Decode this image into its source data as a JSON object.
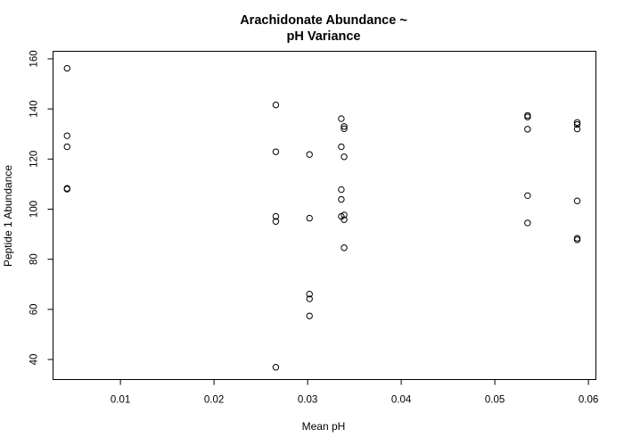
{
  "chart_data": {
    "type": "scatter",
    "title": [
      "Arachidonate Abundance ~",
      "pH Variance"
    ],
    "xlabel": "Mean pH",
    "ylabel": "Peptide 1 Abundance",
    "xlim": [
      0.0028,
      0.0608
    ],
    "ylim": [
      32,
      163
    ],
    "xticks": [
      0.01,
      0.02,
      0.03,
      0.04,
      0.05,
      0.06
    ],
    "xtick_labels": [
      "0.01",
      "0.02",
      "0.03",
      "0.04",
      "0.05",
      "0.06"
    ],
    "yticks": [
      40,
      60,
      80,
      100,
      120,
      140,
      160
    ],
    "ytick_labels": [
      "40",
      "60",
      "80",
      "100",
      "120",
      "140",
      "160"
    ],
    "grid": false,
    "marker": "open-circle",
    "marker_color": "#000000",
    "points": [
      {
        "x": 0.0043,
        "y": 156.2
      },
      {
        "x": 0.0043,
        "y": 129.3
      },
      {
        "x": 0.0043,
        "y": 124.9
      },
      {
        "x": 0.0043,
        "y": 108.3
      },
      {
        "x": 0.0043,
        "y": 108.0
      },
      {
        "x": 0.0266,
        "y": 141.6
      },
      {
        "x": 0.0266,
        "y": 122.9
      },
      {
        "x": 0.0266,
        "y": 97.1
      },
      {
        "x": 0.0266,
        "y": 95.1
      },
      {
        "x": 0.0266,
        "y": 36.9
      },
      {
        "x": 0.0302,
        "y": 121.8
      },
      {
        "x": 0.0302,
        "y": 96.4
      },
      {
        "x": 0.0302,
        "y": 66.1
      },
      {
        "x": 0.0302,
        "y": 64.2
      },
      {
        "x": 0.0302,
        "y": 57.4
      },
      {
        "x": 0.0336,
        "y": 136.1
      },
      {
        "x": 0.0339,
        "y": 133.0
      },
      {
        "x": 0.0339,
        "y": 132.1
      },
      {
        "x": 0.0336,
        "y": 124.9
      },
      {
        "x": 0.0339,
        "y": 120.9
      },
      {
        "x": 0.0336,
        "y": 107.8
      },
      {
        "x": 0.0336,
        "y": 103.9
      },
      {
        "x": 0.0339,
        "y": 97.7
      },
      {
        "x": 0.0336,
        "y": 97.1
      },
      {
        "x": 0.0339,
        "y": 95.8
      },
      {
        "x": 0.0339,
        "y": 84.6
      },
      {
        "x": 0.0535,
        "y": 137.4
      },
      {
        "x": 0.0535,
        "y": 136.8
      },
      {
        "x": 0.0535,
        "y": 131.9
      },
      {
        "x": 0.0535,
        "y": 105.4
      },
      {
        "x": 0.0535,
        "y": 94.5
      },
      {
        "x": 0.0588,
        "y": 134.6
      },
      {
        "x": 0.0588,
        "y": 133.8
      },
      {
        "x": 0.0588,
        "y": 132.0
      },
      {
        "x": 0.0588,
        "y": 103.3
      },
      {
        "x": 0.0588,
        "y": 88.4
      },
      {
        "x": 0.0588,
        "y": 87.8
      }
    ]
  }
}
